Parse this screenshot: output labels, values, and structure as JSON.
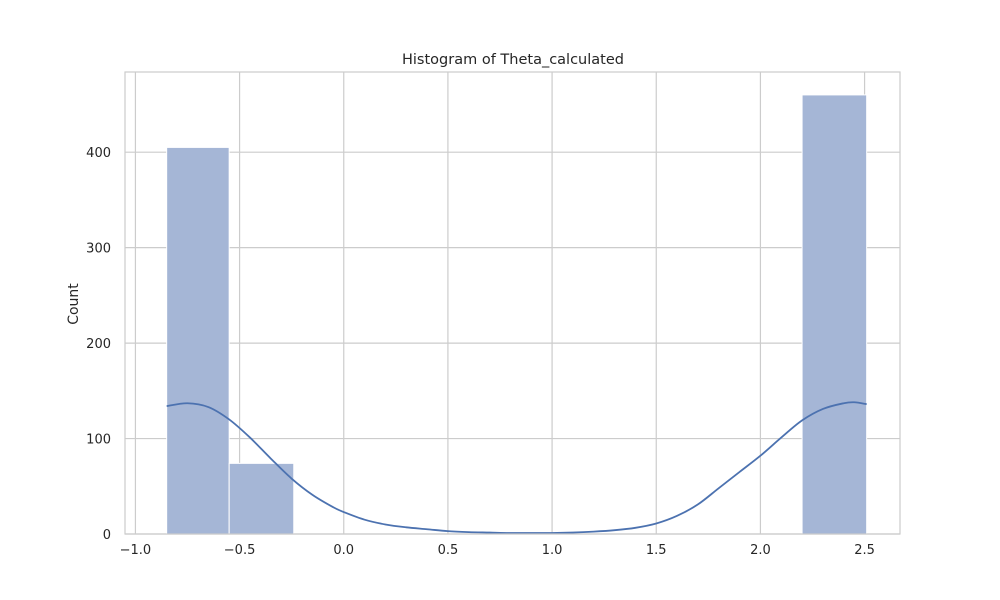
{
  "chart_data": {
    "type": "bar",
    "title": "Histogram of Theta_calculated",
    "xlabel": "",
    "ylabel": "Count",
    "xlim": [
      -1.05,
      2.67
    ],
    "ylim": [
      0,
      484
    ],
    "grid": true,
    "x_ticks": [
      {
        "value": -1.0,
        "label": "−1.0"
      },
      {
        "value": -0.5,
        "label": "−0.5"
      },
      {
        "value": 0.0,
        "label": "0.0"
      },
      {
        "value": 0.5,
        "label": "0.5"
      },
      {
        "value": 1.0,
        "label": "1.0"
      },
      {
        "value": 1.5,
        "label": "1.5"
      },
      {
        "value": 2.0,
        "label": "2.0"
      },
      {
        "value": 2.5,
        "label": "2.5"
      }
    ],
    "y_ticks": [
      {
        "value": 0,
        "label": "0"
      },
      {
        "value": 100,
        "label": "100"
      },
      {
        "value": 200,
        "label": "200"
      },
      {
        "value": 300,
        "label": "300"
      },
      {
        "value": 400,
        "label": "400"
      }
    ],
    "bins": [
      {
        "x0": -0.85,
        "x1": -0.55,
        "count": 405
      },
      {
        "x0": -0.55,
        "x1": -0.24,
        "count": 74
      },
      {
        "x0": 2.2,
        "x1": 2.51,
        "count": 460
      }
    ],
    "kde": {
      "x": [
        -0.85,
        -0.75,
        -0.65,
        -0.55,
        -0.45,
        -0.35,
        -0.25,
        -0.15,
        -0.05,
        0.0,
        0.1,
        0.2,
        0.3,
        0.4,
        0.5,
        0.6,
        0.7,
        0.8,
        0.9,
        1.0,
        1.1,
        1.2,
        1.3,
        1.4,
        1.5,
        1.6,
        1.7,
        1.8,
        1.9,
        2.0,
        2.1,
        2.2,
        2.3,
        2.4,
        2.45,
        2.51
      ],
      "y": [
        134,
        137,
        133,
        120,
        101,
        79,
        58,
        41,
        28,
        23,
        15,
        10,
        7,
        5,
        3,
        2,
        1.5,
        1,
        1,
        1,
        1.5,
        2.5,
        4,
        6.5,
        11,
        19,
        31,
        48,
        65,
        82,
        101,
        119,
        131,
        137,
        138,
        136
      ]
    },
    "colors": {
      "bar_fill": "#a5b6d6",
      "bar_stroke": "#ffffff",
      "kde_line": "#4c72b0",
      "grid": "#cccccc",
      "spine": "#cccccc",
      "text": "#262626"
    }
  }
}
